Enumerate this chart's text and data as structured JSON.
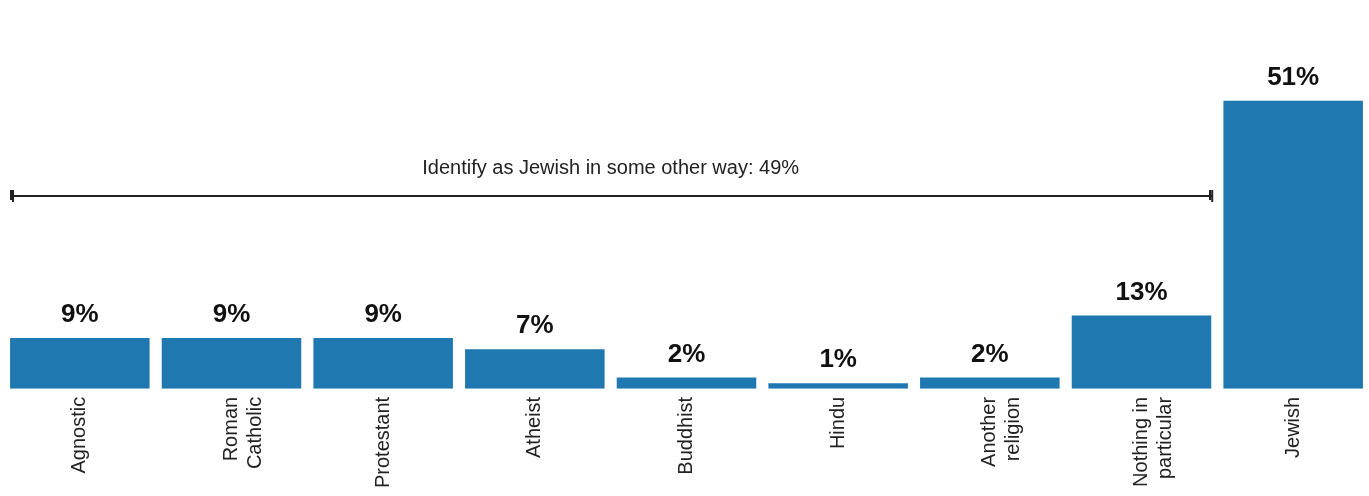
{
  "chart_data": {
    "type": "bar",
    "categories": [
      "Agnostic",
      "Roman\nCatholic",
      "Protestant",
      "Atheist",
      "Buddhist",
      "Hindu",
      "Another\nreligion",
      "Nothing in\nparticular",
      "Jewish"
    ],
    "values": [
      9,
      9,
      9,
      7,
      2,
      1,
      2,
      13,
      51
    ],
    "color": "#1f78b0",
    "value_labels": [
      "9%",
      "9%",
      "9%",
      "7%",
      "2%",
      "1%",
      "2%",
      "13%",
      "51%"
    ],
    "annotations": [
      "Identify as Jewish in some other way: 49%"
    ],
    "grid": false,
    "legend": false
  }
}
